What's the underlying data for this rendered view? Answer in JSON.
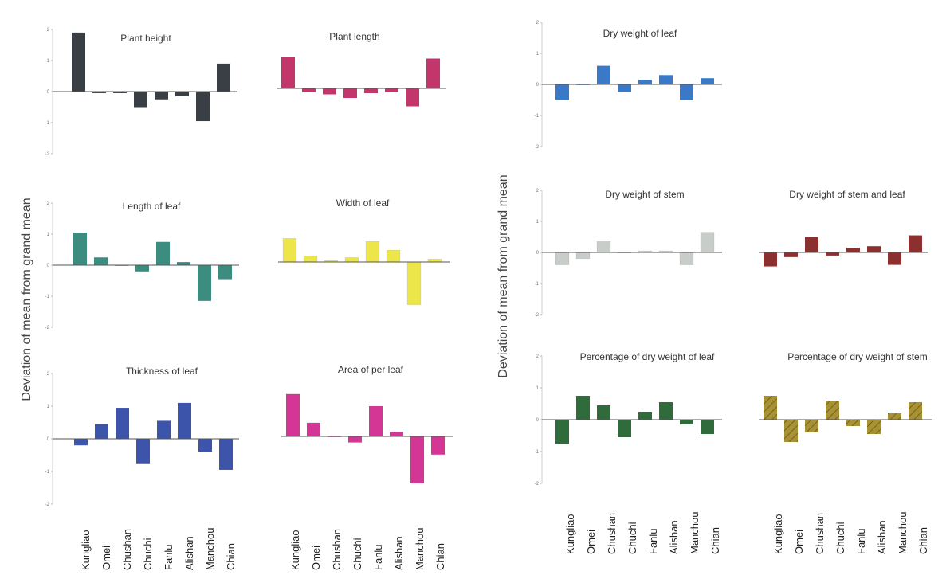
{
  "figure": {
    "ylabel": "Deviation of mean from grand mean",
    "categories": [
      "Kungliao",
      "Omei",
      "Chushan",
      "Chuchi",
      "Fanlu",
      "Alishan",
      "Manchou",
      "Chian"
    ]
  },
  "chart_data": [
    {
      "type": "bar",
      "title": "Plant height",
      "categories": [
        "Kungliao",
        "Omei",
        "Chushan",
        "Chuchi",
        "Fanlu",
        "Alishan",
        "Manchou",
        "Chian"
      ],
      "values": [
        1.9,
        -0.05,
        -0.05,
        -0.5,
        -0.25,
        -0.15,
        -0.95,
        0.9
      ],
      "ylim": [
        -2,
        2
      ],
      "yticks": [
        "2",
        "1",
        "0",
        "-1",
        "-2"
      ],
      "color": "#3a3f45"
    },
    {
      "type": "bar",
      "title": "Plant length",
      "categories": [
        "Kungliao",
        "Omei",
        "Chushan",
        "Chuchi",
        "Fanlu",
        "Alishan",
        "Manchou",
        "Chian"
      ],
      "values": [
        1.3,
        -0.15,
        -0.25,
        -0.4,
        -0.2,
        -0.15,
        -0.75,
        1.25
      ],
      "ylim": [
        -2,
        2
      ],
      "color": "#c2366b"
    },
    {
      "type": "bar",
      "title": "Length of leaf",
      "categories": [
        "Kungliao",
        "Omei",
        "Chushan",
        "Chuchi",
        "Fanlu",
        "Alishan",
        "Manchou",
        "Chian"
      ],
      "values": [
        1.05,
        0.25,
        0.0,
        -0.2,
        0.75,
        0.1,
        -1.15,
        -0.45
      ],
      "ylim": [
        -2,
        2
      ],
      "yticks": [
        "2",
        "1",
        "0",
        "-1",
        "-2"
      ],
      "color": "#3d8c80"
    },
    {
      "type": "bar",
      "title": "Width of leaf",
      "categories": [
        "Kungliao",
        "Omei",
        "Chushan",
        "Chuchi",
        "Fanlu",
        "Alishan",
        "Manchou",
        "Chian"
      ],
      "values": [
        0.8,
        0.2,
        0.05,
        0.15,
        0.7,
        0.4,
        -1.45,
        0.1
      ],
      "ylim": [
        -2,
        2
      ],
      "color": "#ede64a"
    },
    {
      "type": "bar",
      "title": "Thickness of leaf",
      "categories": [
        "Kungliao",
        "Omei",
        "Chushan",
        "Chuchi",
        "Fanlu",
        "Alishan",
        "Manchou",
        "Chian"
      ],
      "values": [
        -0.2,
        0.45,
        0.95,
        -0.75,
        0.55,
        1.1,
        -0.4,
        -0.95
      ],
      "ylim": [
        -2,
        2
      ],
      "yticks": [
        "2",
        "1",
        "0",
        "-1",
        "-2"
      ],
      "color": "#3c54aa"
    },
    {
      "type": "bar",
      "title": "Area of per leaf",
      "categories": [
        "Kungliao",
        "Omei",
        "Chushan",
        "Chuchi",
        "Fanlu",
        "Alishan",
        "Manchou",
        "Chian"
      ],
      "values": [
        1.4,
        0.45,
        0.0,
        -0.2,
        1.0,
        0.15,
        -1.55,
        -0.6
      ],
      "ylim": [
        -2,
        2
      ],
      "color": "#d33694"
    },
    {
      "type": "bar",
      "title": "Dry weight of leaf",
      "categories": [
        "Kungliao",
        "Omei",
        "Chushan",
        "Chuchi",
        "Fanlu",
        "Alishan",
        "Manchou",
        "Chian"
      ],
      "values": [
        -0.5,
        0.0,
        0.6,
        -0.25,
        0.15,
        0.3,
        -0.5,
        0.2
      ],
      "ylim": [
        -2,
        2
      ],
      "yticks": [
        "2",
        "1",
        "0",
        "-1",
        "-2"
      ],
      "color": "#3a78c8"
    },
    {
      "type": "bar",
      "title": "Dry weight of stem",
      "categories": [
        "Kungliao",
        "Omei",
        "Chushan",
        "Chuchi",
        "Fanlu",
        "Alishan",
        "Manchou",
        "Chian"
      ],
      "values": [
        -0.4,
        -0.2,
        0.35,
        0.0,
        0.05,
        0.05,
        -0.4,
        0.65
      ],
      "ylim": [
        -2,
        2
      ],
      "yticks": [
        "2",
        "1",
        "0",
        "-1",
        "-2"
      ],
      "color": "#c9cdc9"
    },
    {
      "type": "bar",
      "title": "Dry weight of stem and leaf",
      "categories": [
        "Kungliao",
        "Omei",
        "Chushan",
        "Chuchi",
        "Fanlu",
        "Alishan",
        "Manchou",
        "Chian"
      ],
      "values": [
        -0.45,
        -0.15,
        0.5,
        -0.1,
        0.15,
        0.2,
        -0.4,
        0.55
      ],
      "ylim": [
        -2,
        2
      ],
      "color": "#8c2f2f"
    },
    {
      "type": "bar",
      "title": "Percentage of dry weight of leaf",
      "categories": [
        "Kungliao",
        "Omei",
        "Chushan",
        "Chuchi",
        "Fanlu",
        "Alishan",
        "Manchou",
        "Chian"
      ],
      "values": [
        -0.75,
        0.75,
        0.45,
        -0.55,
        0.25,
        0.55,
        -0.15,
        -0.45
      ],
      "ylim": [
        -2,
        2
      ],
      "yticks": [
        "2",
        "1",
        "0",
        "-1",
        "-2"
      ],
      "color": "#2f6b3b"
    },
    {
      "type": "bar",
      "title": "Percentage of dry weight of stem",
      "categories": [
        "Kungliao",
        "Omei",
        "Chushan",
        "Chuchi",
        "Fanlu",
        "Alishan",
        "Manchou",
        "Chian"
      ],
      "values": [
        0.75,
        -0.7,
        -0.4,
        0.6,
        -0.2,
        -0.45,
        0.2,
        0.55
      ],
      "ylim": [
        -2,
        2
      ],
      "color": "#a89234",
      "pattern": "hatched"
    }
  ]
}
